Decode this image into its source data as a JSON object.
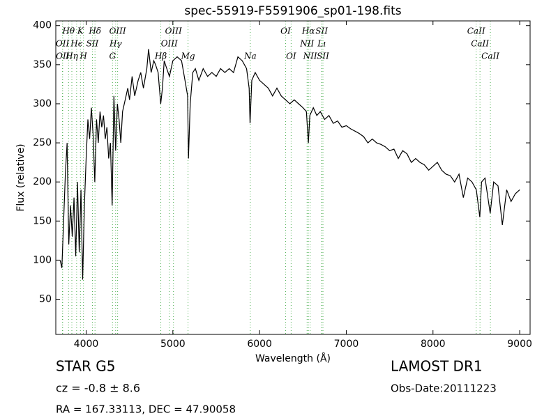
{
  "chart_data": {
    "type": "line",
    "title": "spec-55919-F5591906_sp01-198.fits",
    "x_label": "Wavelength (Å)",
    "y_label": "Flux (relative)",
    "color": "#000000",
    "xlim": [
      3650,
      9120
    ],
    "ylim": [
      5,
      406
    ],
    "xticks": [
      4000,
      5000,
      6000,
      7000,
      8000,
      9000
    ],
    "yticks": [
      50,
      100,
      150,
      200,
      250,
      300,
      350,
      400
    ],
    "x": [
      3700,
      3720,
      3740,
      3760,
      3780,
      3800,
      3820,
      3840,
      3860,
      3880,
      3900,
      3920,
      3940,
      3960,
      3980,
      4000,
      4020,
      4040,
      4060,
      4080,
      4100,
      4120,
      4140,
      4160,
      4180,
      4200,
      4220,
      4240,
      4260,
      4280,
      4300,
      4320,
      4340,
      4360,
      4380,
      4400,
      4420,
      4450,
      4480,
      4500,
      4530,
      4560,
      4600,
      4630,
      4660,
      4700,
      4720,
      4750,
      4780,
      4800,
      4830,
      4860,
      4880,
      4900,
      4930,
      4960,
      5000,
      5050,
      5100,
      5140,
      5170,
      5180,
      5200,
      5230,
      5260,
      5300,
      5350,
      5400,
      5450,
      5500,
      5550,
      5600,
      5650,
      5700,
      5750,
      5800,
      5850,
      5880,
      5890,
      5910,
      5950,
      6000,
      6050,
      6100,
      6150,
      6200,
      6250,
      6300,
      6350,
      6400,
      6450,
      6500,
      6540,
      6563,
      6580,
      6620,
      6660,
      6700,
      6750,
      6800,
      6850,
      6900,
      6950,
      7000,
      7050,
      7100,
      7150,
      7200,
      7250,
      7300,
      7350,
      7400,
      7450,
      7500,
      7550,
      7600,
      7650,
      7700,
      7750,
      7800,
      7850,
      7900,
      7950,
      8000,
      8050,
      8100,
      8150,
      8200,
      8250,
      8300,
      8350,
      8400,
      8450,
      8500,
      8540,
      8560,
      8600,
      8640,
      8660,
      8700,
      8750,
      8800,
      8850,
      8900,
      8950,
      9000
    ],
    "values": [
      100,
      90,
      150,
      210,
      250,
      120,
      170,
      130,
      180,
      105,
      200,
      110,
      190,
      75,
      170,
      230,
      280,
      255,
      295,
      260,
      200,
      280,
      250,
      290,
      270,
      285,
      255,
      270,
      230,
      250,
      170,
      310,
      240,
      300,
      280,
      250,
      290,
      305,
      320,
      305,
      335,
      310,
      330,
      340,
      320,
      345,
      370,
      340,
      355,
      350,
      340,
      300,
      320,
      355,
      345,
      335,
      355,
      360,
      355,
      330,
      310,
      230,
      300,
      340,
      345,
      330,
      345,
      335,
      340,
      335,
      345,
      340,
      345,
      340,
      360,
      355,
      345,
      320,
      275,
      330,
      340,
      330,
      325,
      320,
      310,
      320,
      310,
      305,
      300,
      305,
      300,
      295,
      290,
      250,
      285,
      295,
      285,
      290,
      280,
      285,
      275,
      278,
      270,
      272,
      268,
      265,
      262,
      258,
      250,
      255,
      250,
      248,
      245,
      240,
      242,
      230,
      240,
      236,
      225,
      230,
      225,
      222,
      215,
      220,
      225,
      215,
      210,
      208,
      200,
      210,
      180,
      205,
      200,
      190,
      155,
      200,
      205,
      175,
      160,
      200,
      195,
      145,
      190,
      175,
      185,
      190
    ],
    "lines": [
      [
        {
          "text": "Hθ",
          "x": 3797
        },
        {
          "text": "K",
          "x": 3934
        },
        {
          "text": "Hδ",
          "x": 4102
        },
        {
          "text": "OIII",
          "x": 4363
        },
        {
          "text": "OIII",
          "x": 5007
        },
        {
          "text": "OI",
          "x": 6300
        },
        {
          "text": "Hα",
          "x": 6563
        },
        {
          "text": "SII",
          "x": 6716
        },
        {
          "text": "CaII",
          "x": 8498
        }
      ],
      [
        {
          "text": "OII",
          "x": 3727
        },
        {
          "text": "Hϵ",
          "x": 3890
        },
        {
          "text": "SII",
          "x": 4072
        },
        {
          "text": "Hγ",
          "x": 4340
        },
        {
          "text": "OIII",
          "x": 4959
        },
        {
          "text": "NII",
          "x": 6548
        },
        {
          "text": "Lı",
          "x": 6716
        },
        {
          "text": "CaII",
          "x": 8542
        }
      ],
      [
        {
          "text": "OII",
          "x": 3729
        },
        {
          "text": "Hη",
          "x": 3835
        },
        {
          "text": "H",
          "x": 3969
        },
        {
          "text": "G",
          "x": 4304
        },
        {
          "text": "Hβ",
          "x": 4861
        },
        {
          "text": "Mg",
          "x": 5175
        },
        {
          "text": "Na",
          "x": 5893
        },
        {
          "text": "OI",
          "x": 6364
        },
        {
          "text": "NII",
          "x": 6583
        },
        {
          "text": "SII",
          "x": 6731
        },
        {
          "text": "CaII",
          "x": 8662
        }
      ]
    ],
    "object_class": "STAR   G5",
    "redshift": "cz = -0.8 ± 8.6",
    "coords": "RA = 167.33113, DEC = 47.90058",
    "survey": "LAMOST DR1",
    "obs_date": "Obs-Date:20111223"
  }
}
